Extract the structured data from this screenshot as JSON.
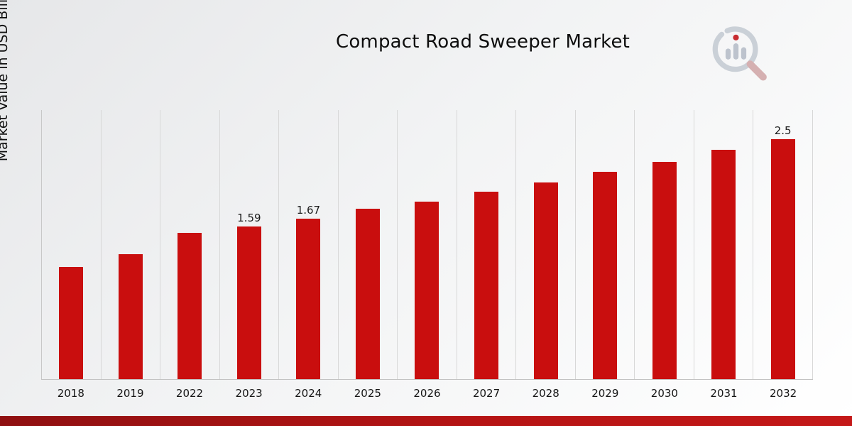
{
  "chart_data": {
    "type": "bar",
    "title": "Compact Road Sweeper Market",
    "ylabel": "Market Value in USD Billion",
    "xlabel": "",
    "categories": [
      "2018",
      "2019",
      "2022",
      "2023",
      "2024",
      "2025",
      "2026",
      "2027",
      "2028",
      "2029",
      "2030",
      "2031",
      "2032"
    ],
    "values": [
      1.17,
      1.3,
      1.52,
      1.59,
      1.67,
      1.77,
      1.85,
      1.95,
      2.05,
      2.16,
      2.26,
      2.39,
      2.5
    ],
    "data_labels": [
      "",
      "",
      "",
      "1.59",
      "1.67",
      "",
      "",
      "",
      "",
      "",
      "",
      "",
      "2.5"
    ],
    "ylim": [
      0,
      2.8
    ],
    "grid": "vertical",
    "legend": "none",
    "bar_color": "#c90e0e"
  },
  "branding": {
    "logo_icon": "bar-chart-magnifier-icon",
    "accent_color": "#b51414"
  }
}
